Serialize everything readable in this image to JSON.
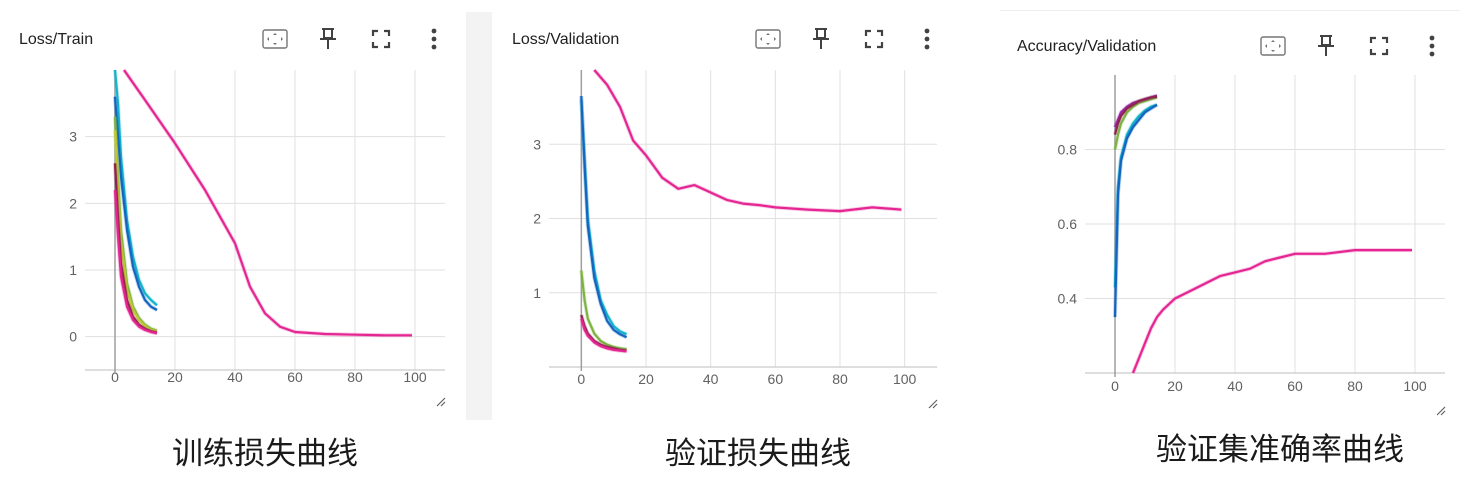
{
  "panels": [
    {
      "title": "Loss/Train",
      "caption": "训练损失曲线",
      "toolbar": [
        "fit-domain-icon",
        "pin-icon",
        "fullscreen-icon",
        "more-vert-icon"
      ]
    },
    {
      "title": "Loss/Validation",
      "caption": "验证损失曲线",
      "toolbar": [
        "fit-domain-icon",
        "pin-icon",
        "fullscreen-icon",
        "more-vert-icon"
      ]
    },
    {
      "title": "Accuracy/Validation",
      "caption": "验证集准确率曲线",
      "toolbar": [
        "fit-domain-icon",
        "pin-icon",
        "fullscreen-icon",
        "more-vert-icon"
      ]
    }
  ],
  "chart_data": [
    {
      "type": "line",
      "title": "Loss/Train",
      "xlim": [
        -10,
        110
      ],
      "ylim": [
        -0.5,
        4
      ],
      "xticks": [
        0,
        20,
        40,
        60,
        80,
        100
      ],
      "yticks": [
        0,
        1,
        2,
        3
      ],
      "grid": true,
      "colors": {
        "teal": "#12b5cb",
        "magenta": "#e52592",
        "olive": "#7cb342",
        "purple": "#9c27b0",
        "darkred": "#a52a6a",
        "grey": "#9e9e9e"
      },
      "series": [
        {
          "color": "#e52592",
          "x": [
            3,
            10,
            20,
            30,
            40,
            45,
            50,
            55,
            60,
            70,
            80,
            90,
            99
          ],
          "y": [
            4.0,
            3.55,
            2.9,
            2.2,
            1.4,
            0.75,
            0.35,
            0.15,
            0.07,
            0.04,
            0.03,
            0.02,
            0.02
          ]
        },
        {
          "color": "#12b5cb",
          "x": [
            0,
            1,
            2,
            4,
            6,
            8,
            10,
            12,
            14
          ],
          "y": [
            4.0,
            3.5,
            2.7,
            1.75,
            1.2,
            0.85,
            0.65,
            0.55,
            0.47
          ]
        },
        {
          "color": "#1565c0",
          "x": [
            0,
            1,
            2,
            4,
            6,
            8,
            10,
            12,
            14
          ],
          "y": [
            3.6,
            3.0,
            2.4,
            1.6,
            1.05,
            0.75,
            0.55,
            0.45,
            0.4
          ]
        },
        {
          "color": "#7cb342",
          "x": [
            0,
            1,
            2,
            4,
            6,
            8,
            10,
            12,
            14
          ],
          "y": [
            3.3,
            2.4,
            1.6,
            0.8,
            0.45,
            0.28,
            0.18,
            0.12,
            0.09
          ]
        },
        {
          "color": "#c0ca33",
          "x": [
            0,
            1,
            2,
            4,
            6,
            8,
            10,
            12,
            14
          ],
          "y": [
            3.1,
            2.2,
            1.4,
            0.7,
            0.4,
            0.25,
            0.16,
            0.1,
            0.08
          ]
        },
        {
          "color": "#8e244d",
          "x": [
            0,
            1,
            2,
            4,
            6,
            8,
            10,
            12,
            14
          ],
          "y": [
            2.6,
            1.8,
            1.1,
            0.55,
            0.3,
            0.18,
            0.12,
            0.08,
            0.06
          ]
        },
        {
          "color": "#e52592",
          "x": [
            0,
            1,
            2,
            4,
            6,
            8,
            10,
            12,
            14
          ],
          "y": [
            2.2,
            1.5,
            0.9,
            0.45,
            0.25,
            0.15,
            0.1,
            0.07,
            0.05
          ]
        }
      ]
    },
    {
      "type": "line",
      "title": "Loss/Validation",
      "xlim": [
        -10,
        110
      ],
      "ylim": [
        0,
        4
      ],
      "xticks": [
        0,
        20,
        40,
        60,
        80,
        100
      ],
      "yticks": [
        1,
        2,
        3
      ],
      "grid": true,
      "series": [
        {
          "color": "#e52592",
          "x": [
            4,
            8,
            12,
            16,
            20,
            25,
            30,
            35,
            40,
            45,
            50,
            55,
            60,
            70,
            80,
            90,
            99
          ],
          "y": [
            4.0,
            3.8,
            3.5,
            3.05,
            2.85,
            2.55,
            2.4,
            2.45,
            2.35,
            2.25,
            2.2,
            2.18,
            2.15,
            2.12,
            2.1,
            2.15,
            2.12
          ]
        },
        {
          "color": "#12b5cb",
          "x": [
            0,
            1,
            2,
            4,
            6,
            8,
            10,
            12,
            14
          ],
          "y": [
            3.6,
            2.8,
            2.0,
            1.3,
            0.9,
            0.7,
            0.55,
            0.48,
            0.44
          ]
        },
        {
          "color": "#1565c0",
          "x": [
            0,
            1,
            2,
            4,
            6,
            8,
            10,
            12,
            14
          ],
          "y": [
            3.65,
            2.7,
            1.9,
            1.2,
            0.85,
            0.62,
            0.5,
            0.44,
            0.4
          ]
        },
        {
          "color": "#7cb342",
          "x": [
            0,
            1,
            2,
            4,
            6,
            8,
            10,
            12,
            14
          ],
          "y": [
            1.3,
            0.9,
            0.65,
            0.45,
            0.35,
            0.3,
            0.27,
            0.25,
            0.24
          ]
        },
        {
          "color": "#8e244d",
          "x": [
            0,
            1,
            2,
            4,
            6,
            8,
            10,
            12,
            14
          ],
          "y": [
            0.7,
            0.55,
            0.45,
            0.35,
            0.3,
            0.27,
            0.25,
            0.23,
            0.22
          ]
        },
        {
          "color": "#e52592",
          "x": [
            0,
            1,
            2,
            4,
            6,
            8,
            10,
            12,
            14
          ],
          "y": [
            0.65,
            0.5,
            0.42,
            0.33,
            0.28,
            0.25,
            0.23,
            0.22,
            0.21
          ]
        }
      ]
    },
    {
      "type": "line",
      "title": "Accuracy/Validation",
      "xlim": [
        -10,
        110
      ],
      "ylim": [
        0.2,
        1.0
      ],
      "xticks": [
        0,
        20,
        40,
        60,
        80,
        100
      ],
      "yticks": [
        0.4,
        0.6,
        0.8
      ],
      "grid": true,
      "series": [
        {
          "color": "#e52592",
          "x": [
            6,
            8,
            10,
            12,
            14,
            16,
            20,
            25,
            30,
            35,
            40,
            45,
            50,
            55,
            60,
            70,
            80,
            90,
            99
          ],
          "y": [
            0.2,
            0.24,
            0.28,
            0.32,
            0.35,
            0.37,
            0.4,
            0.42,
            0.44,
            0.46,
            0.47,
            0.48,
            0.5,
            0.51,
            0.52,
            0.52,
            0.53,
            0.53,
            0.53
          ]
        },
        {
          "color": "#12b5cb",
          "x": [
            0,
            1,
            2,
            4,
            6,
            8,
            10,
            12,
            14
          ],
          "y": [
            0.43,
            0.7,
            0.78,
            0.84,
            0.87,
            0.89,
            0.905,
            0.915,
            0.92
          ]
        },
        {
          "color": "#1565c0",
          "x": [
            0,
            1,
            2,
            4,
            6,
            8,
            10,
            12,
            14
          ],
          "y": [
            0.35,
            0.68,
            0.77,
            0.83,
            0.86,
            0.88,
            0.9,
            0.91,
            0.92
          ]
        },
        {
          "color": "#7cb342",
          "x": [
            0,
            1,
            2,
            4,
            6,
            8,
            10,
            12,
            14
          ],
          "y": [
            0.8,
            0.84,
            0.87,
            0.9,
            0.915,
            0.925,
            0.93,
            0.935,
            0.94
          ]
        },
        {
          "color": "#9c27b0",
          "x": [
            0,
            1,
            2,
            4,
            6,
            8,
            10,
            12,
            14
          ],
          "y": [
            0.86,
            0.88,
            0.9,
            0.915,
            0.925,
            0.93,
            0.935,
            0.94,
            0.945
          ]
        },
        {
          "color": "#8e244d",
          "x": [
            0,
            1,
            2,
            4,
            6,
            8,
            10,
            12,
            14
          ],
          "y": [
            0.84,
            0.87,
            0.89,
            0.91,
            0.92,
            0.93,
            0.935,
            0.94,
            0.942
          ]
        }
      ]
    }
  ]
}
